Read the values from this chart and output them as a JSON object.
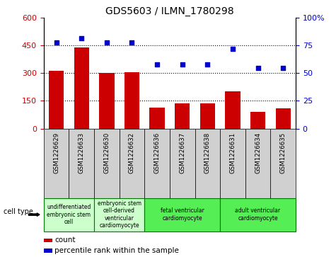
{
  "title": "GDS5603 / ILMN_1780298",
  "samples": [
    "GSM1226629",
    "GSM1226633",
    "GSM1226630",
    "GSM1226632",
    "GSM1226636",
    "GSM1226637",
    "GSM1226638",
    "GSM1226631",
    "GSM1226634",
    "GSM1226635"
  ],
  "counts": [
    315,
    440,
    300,
    305,
    115,
    135,
    135,
    200,
    90,
    110
  ],
  "percentiles": [
    78,
    82,
    78,
    78,
    58,
    58,
    58,
    72,
    55,
    55
  ],
  "ylim_left": [
    0,
    600
  ],
  "ylim_right": [
    0,
    100
  ],
  "yticks_left": [
    0,
    150,
    300,
    450,
    600
  ],
  "yticks_right": [
    0,
    25,
    50,
    75,
    100
  ],
  "bar_color": "#cc0000",
  "dot_color": "#0000cc",
  "cell_type_groups": [
    {
      "label": "undifferentiated\nembryonic stem\ncell",
      "indices": [
        0,
        1
      ],
      "color": "#ccffcc"
    },
    {
      "label": "embryonic stem\ncell-derived\nventricular\ncardiomyocyte",
      "indices": [
        2,
        3
      ],
      "color": "#ccffcc"
    },
    {
      "label": "fetal ventricular\ncardiomyocyte",
      "indices": [
        4,
        5,
        6
      ],
      "color": "#55ee55"
    },
    {
      "label": "adult ventricular\ncardiomyocyte",
      "indices": [
        7,
        8,
        9
      ],
      "color": "#55ee55"
    }
  ],
  "legend_count_label": "count",
  "legend_percentile_label": "percentile rank within the sample",
  "cell_type_label": "cell type",
  "tick_color_left": "#cc0000",
  "tick_color_right": "#0000cc",
  "sample_bg_color": "#d0d0d0"
}
